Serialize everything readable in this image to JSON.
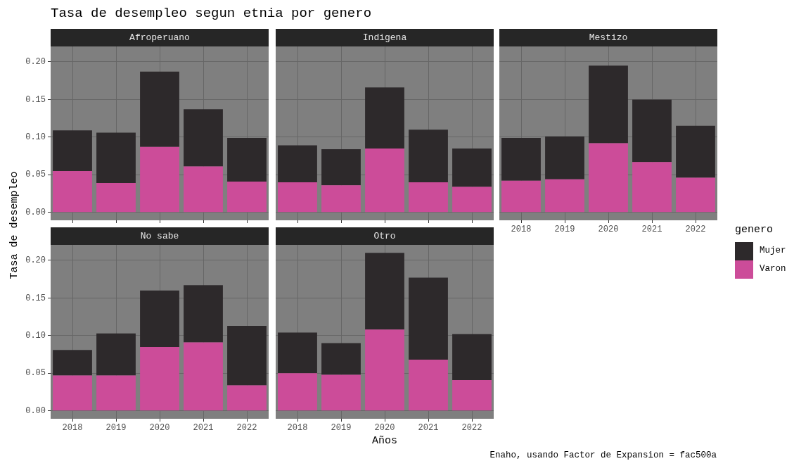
{
  "chart_data": [
    {
      "type": "bar",
      "title": "Afroperuano",
      "stacked": true,
      "grid": true,
      "tick_labels": "y",
      "legend": "right",
      "legend_title": "genero",
      "ylabel": "Tasa de desempleo",
      "annotations": [
        "Tasa de desempleo segun etnia por genero",
        "Enaho, usando Factor de Expansion = fac500a"
      ],
      "categories": [
        "2018",
        "2019",
        "2020",
        "2021",
        "2022"
      ],
      "series": [
        {
          "name": "Varon",
          "color": "#cc4c99",
          "values": [
            0.055,
            0.039,
            0.087,
            0.061,
            0.041
          ]
        },
        {
          "name": "Mujer",
          "color": "#2d292b",
          "values": [
            0.054,
            0.067,
            0.1,
            0.076,
            0.058
          ]
        }
      ],
      "ylim": [
        -0.0105,
        0.2205
      ],
      "yticks": [
        {
          "value": 0,
          "label": "0.00"
        },
        {
          "value": 0.05,
          "label": "0.05"
        },
        {
          "value": 0.1,
          "label": "0.10"
        },
        {
          "value": 0.15,
          "label": "0.15"
        },
        {
          "value": 0.2,
          "label": "0.20"
        }
      ]
    },
    {
      "type": "bar",
      "title": "Indigena",
      "stacked": true,
      "grid": true,
      "tick_labels": false,
      "categories": [
        "2018",
        "2019",
        "2020",
        "2021",
        "2022"
      ],
      "series": [
        {
          "color": "#cc4c99",
          "values": [
            0.04,
            0.036,
            0.085,
            0.04,
            0.034
          ]
        },
        {
          "color": "#2d292b",
          "values": [
            0.049,
            0.048,
            0.081,
            0.07,
            0.051
          ]
        }
      ],
      "ylim": [
        -0.0105,
        0.2205
      ],
      "yticks": [
        0,
        0.05,
        0.1,
        0.15,
        0.2
      ]
    },
    {
      "type": "bar",
      "title": "Mestizo",
      "stacked": true,
      "grid": true,
      "tick_labels": "x",
      "categories": [
        "2018",
        "2019",
        "2020",
        "2021",
        "2022"
      ],
      "series": [
        {
          "color": "#cc4c99",
          "values": [
            0.042,
            0.044,
            0.092,
            0.067,
            0.046
          ]
        },
        {
          "color": "#2d292b",
          "values": [
            0.057,
            0.057,
            0.103,
            0.083,
            0.069
          ]
        }
      ],
      "ylim": [
        -0.0105,
        0.2205
      ],
      "yticks": [
        0,
        0.05,
        0.1,
        0.15,
        0.2
      ]
    },
    {
      "type": "bar",
      "title": "No sabe",
      "stacked": true,
      "grid": true,
      "categories": [
        "2018",
        "2019",
        "2020",
        "2021",
        "2022"
      ],
      "series": [
        {
          "color": "#cc4c99",
          "values": [
            0.047,
            0.047,
            0.085,
            0.091,
            0.034
          ]
        },
        {
          "color": "#2d292b",
          "values": [
            0.034,
            0.056,
            0.075,
            0.076,
            0.079
          ]
        }
      ],
      "ylim": [
        -0.0105,
        0.2205
      ],
      "yticks": [
        {
          "value": 0,
          "label": "0.00"
        },
        {
          "value": 0.05,
          "label": "0.05"
        },
        {
          "value": 0.1,
          "label": "0.10"
        },
        {
          "value": 0.15,
          "label": "0.15"
        },
        {
          "value": 0.2,
          "label": "0.20"
        }
      ]
    },
    {
      "type": "bar",
      "title": "Otro",
      "stacked": true,
      "grid": true,
      "tick_labels": "x",
      "xlabel": "Años",
      "categories": [
        "2018",
        "2019",
        "2020",
        "2021",
        "2022"
      ],
      "series": [
        {
          "color": "#cc4c99",
          "values": [
            0.05,
            0.048,
            0.108,
            0.068,
            0.041
          ]
        },
        {
          "color": "#2d292b",
          "values": [
            0.054,
            0.042,
            0.102,
            0.109,
            0.061
          ]
        }
      ],
      "ylim": [
        -0.0105,
        0.2205
      ],
      "yticks": [
        0,
        0.05,
        0.1,
        0.15,
        0.2
      ]
    }
  ]
}
